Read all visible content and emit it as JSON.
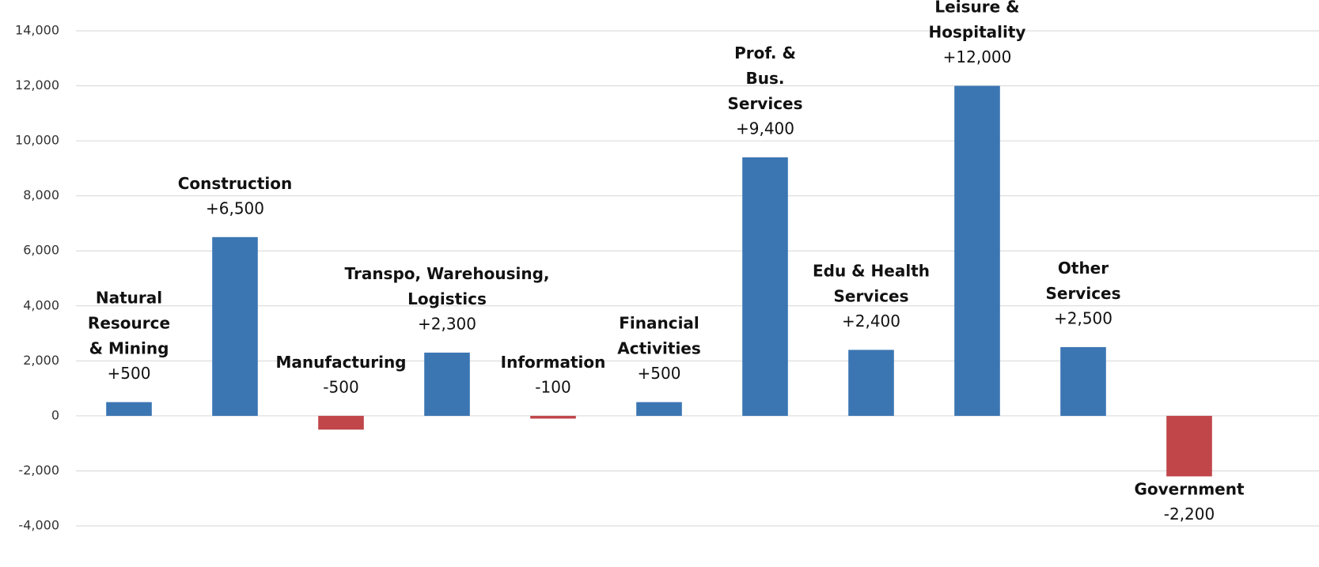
{
  "chart_data": {
    "type": "bar",
    "categories": [
      "Natural\nResource\n& Mining",
      "Construction",
      "Manufacturing",
      "Transpo, Warehousing,\nLogistics",
      "Information",
      "Financial\nActivities",
      "Prof. &\nBus.\nServices",
      "Edu & Health\nServices",
      "Leisure &\nHospitality",
      "Other\nServices",
      "Government"
    ],
    "values": [
      500,
      6500,
      -500,
      2300,
      -100,
      500,
      9400,
      2400,
      12000,
      2500,
      -2200
    ],
    "value_labels": [
      "+500",
      "+6,500",
      "-500",
      "+2,300",
      "-100",
      "+500",
      "+9,400",
      "+2,400",
      "+12,000",
      "+2,500",
      "-2,200"
    ],
    "colors": [
      "#3b76b3",
      "#3b76b3",
      "#c0464a",
      "#3b76b3",
      "#c0464a",
      "#3b76b3",
      "#3b76b3",
      "#3b76b3",
      "#3b76b3",
      "#3b76b3",
      "#c0464a"
    ],
    "ylim": [
      -4000,
      14000
    ],
    "yticks": [
      {
        "value": -4000,
        "label": "-4,000"
      },
      {
        "value": -2000,
        "label": "-2,000"
      },
      0,
      {
        "value": 2000,
        "label": "2,000"
      },
      {
        "value": 4000,
        "label": "4,000"
      },
      {
        "value": 6000,
        "label": "6,000"
      },
      {
        "value": 8000,
        "label": "8,000"
      },
      {
        "value": 10000,
        "label": "10,000"
      },
      {
        "value": 12000,
        "label": "12,000"
      },
      {
        "value": 14000,
        "label": "14,000"
      }
    ],
    "grid": true
  }
}
